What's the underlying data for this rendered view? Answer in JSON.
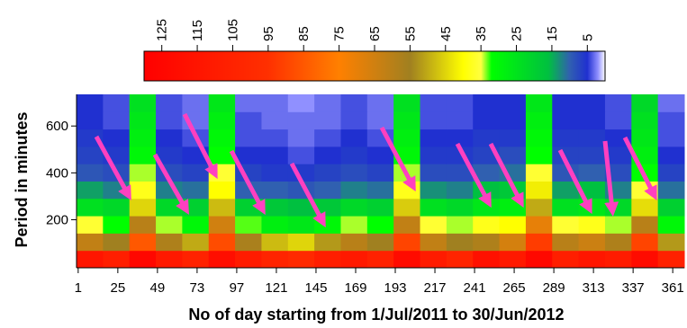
{
  "chart_data": {
    "type": "heatmap",
    "x_label": "No of day starting from 1/Jul/2011 to 30/Jun/2012",
    "y_label": "Period in minutes",
    "xlim": [
      0,
      368
    ],
    "ylim": [
      -5,
      735
    ],
    "xticks": [
      1,
      25,
      49,
      73,
      97,
      121,
      145,
      169,
      193,
      217,
      241,
      265,
      289,
      313,
      337,
      361
    ],
    "yticks": [
      200,
      400,
      600
    ],
    "x_bins": [
      0,
      16,
      32,
      48,
      64,
      80,
      96,
      112,
      128,
      144,
      160,
      176,
      192,
      208,
      224,
      240,
      256,
      272,
      288,
      304,
      320,
      336,
      352,
      368
    ],
    "y_bins": [
      -5,
      69,
      143,
      217,
      291,
      365,
      439,
      513,
      587,
      661,
      735
    ],
    "z": [
      [
        115,
        108,
        125,
        112,
        105,
        120,
        110,
        104,
        100,
        108,
        112,
        106,
        122,
        110,
        104,
        118,
        112,
        124,
        108,
        114,
        110,
        122,
        106
      ],
      [
        62,
        55,
        85,
        58,
        50,
        88,
        57,
        48,
        45,
        52,
        60,
        55,
        90,
        62,
        55,
        58,
        66,
        92,
        60,
        64,
        58,
        90,
        52
      ],
      [
        36,
        32,
        60,
        34,
        30,
        65,
        33,
        28,
        26,
        30,
        34,
        32,
        62,
        36,
        34,
        38,
        40,
        70,
        36,
        38,
        34,
        60,
        30
      ],
      [
        24,
        22,
        45,
        22,
        20,
        48,
        20,
        18,
        16,
        18,
        22,
        20,
        46,
        24,
        22,
        26,
        28,
        50,
        24,
        26,
        22,
        44,
        20
      ],
      [
        14,
        12,
        38,
        12,
        11,
        40,
        10,
        10,
        9,
        10,
        12,
        11,
        38,
        13,
        12,
        16,
        18,
        42,
        14,
        16,
        12,
        36,
        11
      ],
      [
        9,
        8,
        34,
        8,
        7,
        36,
        7,
        6,
        6,
        7,
        8,
        7,
        34,
        8,
        8,
        10,
        11,
        36,
        9,
        10,
        8,
        32,
        7
      ],
      [
        7,
        6,
        30,
        6,
        5,
        32,
        5,
        5,
        4,
        5,
        6,
        5,
        30,
        6,
        6,
        7,
        8,
        32,
        7,
        7,
        6,
        28,
        5
      ],
      [
        6,
        5,
        28,
        5,
        4,
        30,
        4,
        4,
        3,
        4,
        5,
        4,
        28,
        5,
        5,
        6,
        6,
        30,
        6,
        6,
        5,
        26,
        4
      ],
      [
        5,
        4,
        26,
        4,
        3,
        28,
        4,
        3,
        3,
        3,
        4,
        3,
        26,
        4,
        4,
        5,
        5,
        28,
        5,
        5,
        4,
        24,
        4
      ],
      [
        5,
        4,
        24,
        4,
        3,
        26,
        3,
        3,
        2,
        3,
        4,
        3,
        24,
        4,
        4,
        5,
        5,
        26,
        5,
        5,
        4,
        22,
        3
      ]
    ],
    "clim": [
      0,
      130
    ],
    "colorbar_ticks": [
      125,
      115,
      105,
      95,
      85,
      75,
      65,
      55,
      45,
      35,
      25,
      15,
      5
    ],
    "colormap": [
      {
        "value": 0,
        "color": "#ffffff"
      },
      {
        "value": 2,
        "color": "#9090ff"
      },
      {
        "value": 5,
        "color": "#2030d0"
      },
      {
        "value": 10,
        "color": "#3060b0"
      },
      {
        "value": 16,
        "color": "#00c040"
      },
      {
        "value": 32,
        "color": "#00ff00"
      },
      {
        "value": 35,
        "color": "#ffff40"
      },
      {
        "value": 40,
        "color": "#ffff00"
      },
      {
        "value": 55,
        "color": "#a08020"
      },
      {
        "value": 75,
        "color": "#ff8000"
      },
      {
        "value": 95,
        "color": "#ff3000"
      },
      {
        "value": 130,
        "color": "#ff0000"
      }
    ]
  }
}
